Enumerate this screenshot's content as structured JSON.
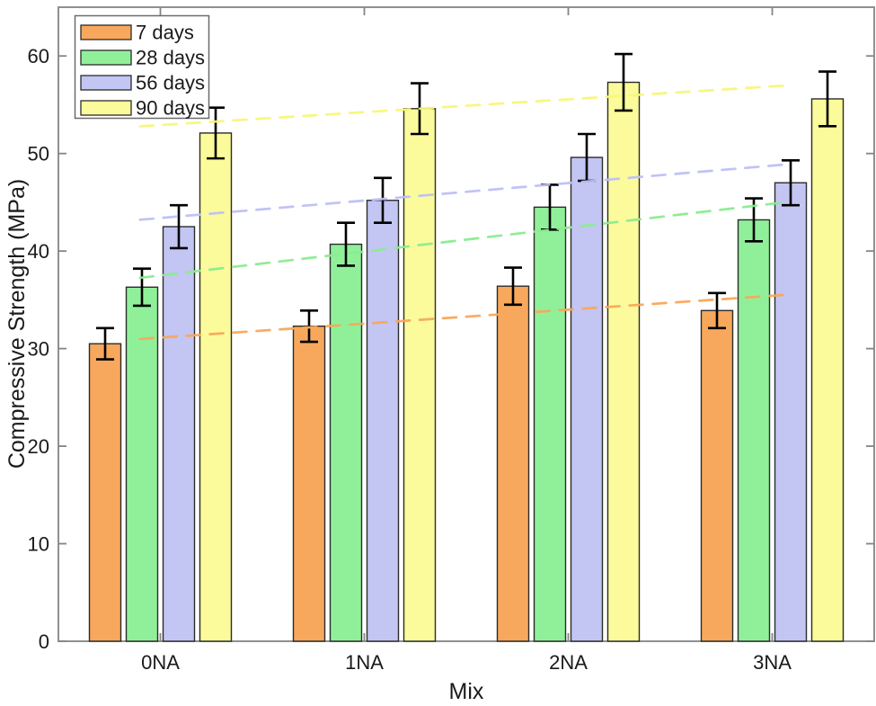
{
  "figure": {
    "background": "#ffffff",
    "frame_color": "#848484",
    "text_color": "#1a1a1a",
    "bar_edge_color": "#2b2b2b",
    "error_bar_color": "#000000",
    "legend_border_color": "#6b6b6b"
  },
  "chart_data": {
    "type": "bar",
    "title": "",
    "xlabel": "Mix",
    "ylabel": "Compressive Strength (MPa)",
    "categories": [
      "0NA",
      "1NA",
      "2NA",
      "3NA"
    ],
    "y_ticks": [
      0,
      10,
      20,
      30,
      40,
      50,
      60
    ],
    "ylim": [
      0,
      65
    ],
    "grid": false,
    "legend_position": "top-left",
    "legend_entries": [
      "7 days",
      "28 days",
      "56 days",
      "90 days"
    ],
    "series": [
      {
        "name": "7 days",
        "color": "#F7A85C",
        "trend_color": "#F9A65A",
        "values": [
          30.5,
          32.3,
          36.4,
          33.9
        ],
        "errors": [
          1.6,
          1.6,
          1.9,
          1.8
        ]
      },
      {
        "name": "28 days",
        "color": "#90F09A",
        "trend_color": "#8AEC8F",
        "values": [
          36.3,
          40.7,
          44.5,
          43.2
        ],
        "errors": [
          1.9,
          2.2,
          2.3,
          2.2
        ]
      },
      {
        "name": "56 days",
        "color": "#C3C5F3",
        "trend_color": "#BDC0F6",
        "values": [
          42.5,
          45.2,
          49.6,
          47.0
        ],
        "errors": [
          2.2,
          2.3,
          2.4,
          2.3
        ]
      },
      {
        "name": "90 days",
        "color": "#FBFB9B",
        "trend_color": "#F7F778",
        "values": [
          52.1,
          54.6,
          57.3,
          55.6
        ],
        "errors": [
          2.6,
          2.6,
          2.9,
          2.8
        ]
      }
    ],
    "trend_lines": {
      "style": "dashed",
      "fit": "linear",
      "per_series": true
    }
  }
}
